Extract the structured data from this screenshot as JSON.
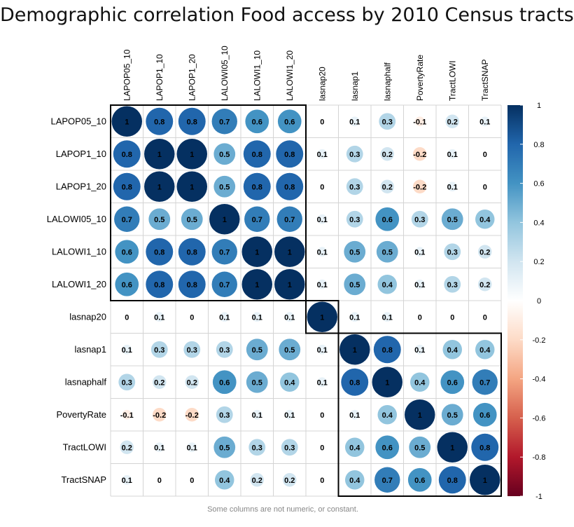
{
  "chart_data": {
    "type": "heatmap",
    "subtype": "correlation-circle",
    "title": "Demographic correlation Food access by 2010 Census tracts",
    "footnote": "Some columns are not numeric, or constant.",
    "variables": [
      "LAPOP05_10",
      "LAPOP1_10",
      "LAPOP1_20",
      "LALOWI05_10",
      "LALOWI1_10",
      "LALOWI1_20",
      "lasnap20",
      "lasnap1",
      "lasnaphalf",
      "PovertyRate",
      "TractLOWI",
      "TractSNAP"
    ],
    "matrix": [
      [
        1,
        0.8,
        0.8,
        0.7,
        0.6,
        0.6,
        0,
        0.1,
        0.3,
        -0.1,
        0.2,
        0.1
      ],
      [
        0.8,
        1,
        1,
        0.5,
        0.8,
        0.8,
        0.1,
        0.3,
        0.2,
        -0.2,
        0.1,
        0
      ],
      [
        0.8,
        1,
        1,
        0.5,
        0.8,
        0.8,
        0,
        0.3,
        0.2,
        -0.2,
        0.1,
        0
      ],
      [
        0.7,
        0.5,
        0.5,
        1,
        0.7,
        0.7,
        0.1,
        0.3,
        0.6,
        0.3,
        0.5,
        0.4
      ],
      [
        0.6,
        0.8,
        0.8,
        0.7,
        1,
        1,
        0.1,
        0.5,
        0.5,
        0.1,
        0.3,
        0.2
      ],
      [
        0.6,
        0.8,
        0.8,
        0.7,
        1,
        1,
        0.1,
        0.5,
        0.4,
        0.1,
        0.3,
        0.2
      ],
      [
        0,
        0.1,
        0,
        0.1,
        0.1,
        0.1,
        1,
        0.1,
        0.1,
        0,
        0,
        0
      ],
      [
        0.1,
        0.3,
        0.3,
        0.3,
        0.5,
        0.5,
        0.1,
        1,
        0.8,
        0.1,
        0.4,
        0.4
      ],
      [
        0.3,
        0.2,
        0.2,
        0.6,
        0.5,
        0.4,
        0.1,
        0.8,
        1,
        0.4,
        0.6,
        0.7
      ],
      [
        -0.1,
        -0.2,
        -0.2,
        0.3,
        0.1,
        0.1,
        0,
        0.1,
        0.4,
        1,
        0.5,
        0.6
      ],
      [
        0.2,
        0.1,
        0.1,
        0.5,
        0.3,
        0.3,
        0,
        0.4,
        0.6,
        0.5,
        1,
        0.8
      ],
      [
        0.1,
        0,
        0,
        0.4,
        0.2,
        0.2,
        0,
        0.4,
        0.7,
        0.6,
        0.8,
        1
      ]
    ],
    "clusters": [
      [
        0,
        5
      ],
      [
        6,
        6
      ],
      [
        7,
        11
      ]
    ],
    "colorbar": {
      "range": [
        -1,
        1
      ],
      "ticks": [
        1,
        0.8,
        0.6,
        0.4,
        0.2,
        0,
        -0.2,
        -0.4,
        -0.6,
        -0.8,
        -1
      ],
      "tick_labels": [
        "1",
        "0.8",
        "0.6",
        "0.4",
        "0.2",
        "0",
        "-0.2",
        "-0.4",
        "-0.6",
        "-0.8",
        "-1"
      ],
      "stops": [
        "#67001F",
        "#B2182B",
        "#D6604D",
        "#F4A582",
        "#FDDBC7",
        "#FFFFFF",
        "#D1E5F0",
        "#92C5DE",
        "#4393C3",
        "#2166AC",
        "#053061"
      ]
    },
    "grid": true,
    "legend": "right"
  }
}
